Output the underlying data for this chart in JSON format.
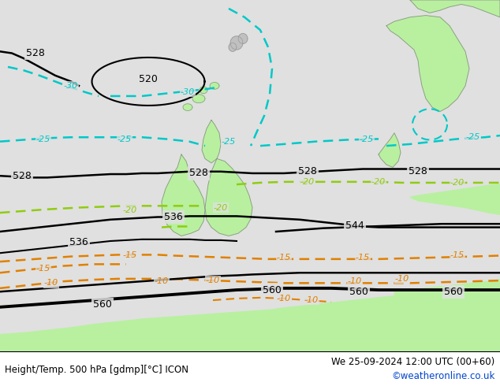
{
  "title_left": "Height/Temp. 500 hPa [gdmp][°C] ICON",
  "title_right": "We 25-09-2024 12:00 UTC (00+60)",
  "credit": "©weatheronline.co.uk",
  "bg_color": "#e0e0e0",
  "land_green": "#b8f0a0",
  "land_gray": "#c0c0c0",
  "coast_color": "#909090",
  "black": "#000000",
  "cyan": "#00c8c8",
  "ygreen": "#90cc10",
  "orange": "#e08000",
  "figsize": [
    6.34,
    4.9
  ],
  "dpi": 100,
  "xlim": [
    0,
    634
  ],
  "ylim": [
    0,
    450
  ]
}
